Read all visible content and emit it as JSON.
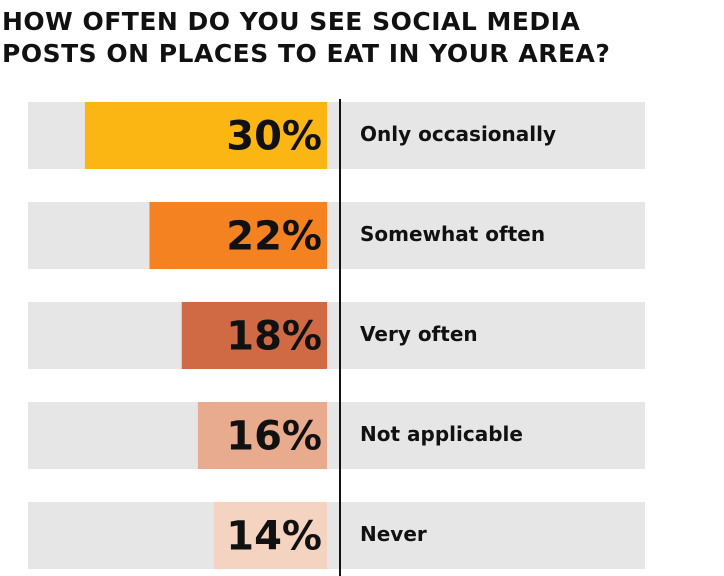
{
  "chart_data": {
    "type": "diverging-label-bar",
    "title": "HOW OFTEN DO YOU SEE SOCIAL MEDIA POSTS ON PLACES TO EAT IN YOUR AREA?",
    "categories": [
      "Only occasionally",
      "Somewhat often",
      "Very often",
      "Not applicable",
      "Never"
    ],
    "values": [
      30,
      22,
      18,
      16,
      14
    ],
    "value_labels": [
      "30%",
      "22%",
      "18%",
      "16%",
      "14%"
    ],
    "colors": [
      "#fbb614",
      "#f58220",
      "#cf6a44",
      "#e8ab8e",
      "#f5d3c1"
    ]
  }
}
